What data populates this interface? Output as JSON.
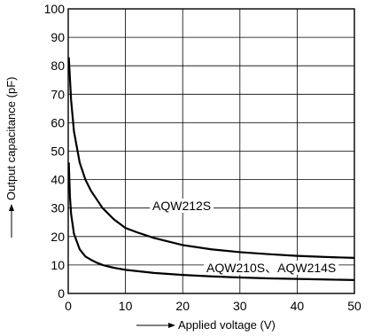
{
  "chart_data": {
    "type": "line",
    "xlabel": "Applied voltage (V)",
    "ylabel": "Output capacitance (pF)",
    "xlim": [
      0,
      50
    ],
    "ylim": [
      0,
      100
    ],
    "xticks": [
      0,
      10,
      20,
      30,
      40,
      50
    ],
    "yticks": [
      0,
      10,
      20,
      30,
      40,
      50,
      60,
      70,
      80,
      90,
      100
    ],
    "grid": true,
    "series": [
      {
        "name": "AQW212S",
        "x": [
          0.1,
          0.5,
          1,
          2,
          3,
          4,
          5,
          6,
          8,
          10,
          12,
          15,
          20,
          25,
          30,
          35,
          40,
          45,
          50
        ],
        "y": [
          83,
          68,
          57,
          46,
          40,
          36,
          33,
          30,
          26,
          23,
          21.5,
          19.5,
          17,
          15.5,
          14.5,
          13.8,
          13.2,
          12.8,
          12.5
        ]
      },
      {
        "name": "AQW210S、AQW214S",
        "x": [
          0.1,
          0.3,
          0.5,
          1,
          2,
          3,
          4,
          5,
          6,
          8,
          10,
          15,
          20,
          25,
          30,
          35,
          40,
          45,
          50
        ],
        "y": [
          46,
          34,
          28,
          21,
          15.5,
          13,
          11.8,
          10.8,
          10,
          9,
          8.3,
          7.2,
          6.5,
          6,
          5.6,
          5.3,
          5.1,
          4.9,
          4.7
        ]
      }
    ]
  }
}
